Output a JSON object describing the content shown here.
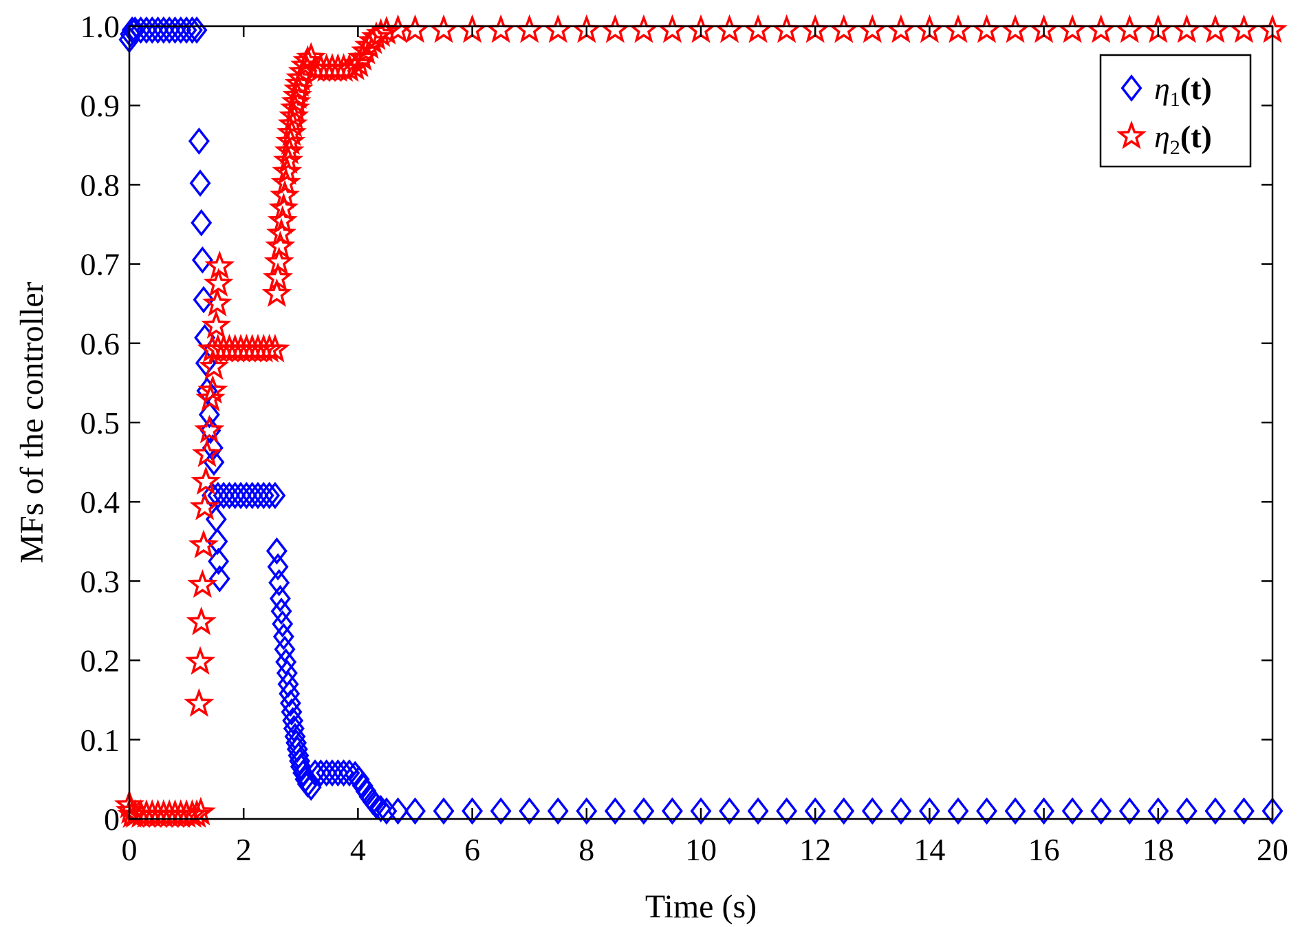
{
  "chart_data": {
    "type": "scatter",
    "title": "",
    "xlabel": "Time (s)",
    "ylabel": "MFs of the controller",
    "xlim": [
      0,
      20
    ],
    "ylim": [
      0,
      1
    ],
    "xticks": [
      0,
      2,
      4,
      6,
      8,
      10,
      12,
      14,
      16,
      18,
      20
    ],
    "xtick_labels": [
      "0",
      "2",
      "4",
      "6",
      "8",
      "10",
      "12",
      "14",
      "16",
      "18",
      "20"
    ],
    "yticks": [
      0,
      0.1,
      0.2,
      0.3,
      0.4,
      0.5,
      0.6,
      0.7,
      0.8,
      0.9,
      1.0
    ],
    "ytick_labels": [
      "0",
      "0.1",
      "0.2",
      "0.3",
      "0.4",
      "0.5",
      "0.6",
      "0.7",
      "0.8",
      "0.9",
      "1.0"
    ],
    "grid": false,
    "legend_position": "top-right",
    "series": [
      {
        "name": "η1(t)",
        "legend": {
          "symbol": "η",
          "sub": "1",
          "arg": "(t)"
        },
        "marker": "diamond",
        "color": "#0000ff",
        "points": [
          [
            0,
            0.983
          ],
          [
            0.02,
            0.99
          ],
          [
            0.05,
            0.995
          ],
          [
            0.1,
            0.995
          ],
          [
            0.2,
            0.995
          ],
          [
            0.3,
            0.995
          ],
          [
            0.4,
            0.995
          ],
          [
            0.5,
            0.995
          ],
          [
            0.6,
            0.995
          ],
          [
            0.7,
            0.995
          ],
          [
            0.8,
            0.995
          ],
          [
            0.9,
            0.995
          ],
          [
            1.0,
            0.995
          ],
          [
            1.1,
            0.995
          ],
          [
            1.18,
            0.995
          ],
          [
            1.22,
            0.855
          ],
          [
            1.24,
            0.802
          ],
          [
            1.26,
            0.752
          ],
          [
            1.28,
            0.705
          ],
          [
            1.3,
            0.655
          ],
          [
            1.32,
            0.607
          ],
          [
            1.34,
            0.575
          ],
          [
            1.36,
            0.54
          ],
          [
            1.4,
            0.51
          ],
          [
            1.42,
            0.49
          ],
          [
            1.46,
            0.468
          ],
          [
            1.48,
            0.45
          ],
          [
            1.52,
            0.378
          ],
          [
            1.54,
            0.35
          ],
          [
            1.56,
            0.325
          ],
          [
            1.58,
            0.303
          ],
          [
            1.45,
            0.408
          ],
          [
            1.55,
            0.408
          ],
          [
            1.65,
            0.408
          ],
          [
            1.75,
            0.408
          ],
          [
            1.85,
            0.408
          ],
          [
            1.95,
            0.408
          ],
          [
            2.05,
            0.408
          ],
          [
            2.15,
            0.408
          ],
          [
            2.25,
            0.408
          ],
          [
            2.35,
            0.408
          ],
          [
            2.45,
            0.408
          ],
          [
            2.55,
            0.408
          ],
          [
            2.58,
            0.338
          ],
          [
            2.6,
            0.318
          ],
          [
            2.62,
            0.298
          ],
          [
            2.64,
            0.278
          ],
          [
            2.66,
            0.262
          ],
          [
            2.68,
            0.246
          ],
          [
            2.7,
            0.23
          ],
          [
            2.72,
            0.214
          ],
          [
            2.74,
            0.198
          ],
          [
            2.76,
            0.184
          ],
          [
            2.78,
            0.17
          ],
          [
            2.8,
            0.158
          ],
          [
            2.82,
            0.146
          ],
          [
            2.84,
            0.135
          ],
          [
            2.86,
            0.124
          ],
          [
            2.88,
            0.114
          ],
          [
            2.9,
            0.104
          ],
          [
            2.92,
            0.096
          ],
          [
            2.94,
            0.088
          ],
          [
            2.96,
            0.08
          ],
          [
            2.98,
            0.073
          ],
          [
            3.0,
            0.066
          ],
          [
            3.04,
            0.058
          ],
          [
            3.08,
            0.05
          ],
          [
            3.12,
            0.044
          ],
          [
            3.18,
            0.04
          ],
          [
            3.25,
            0.058
          ],
          [
            3.35,
            0.058
          ],
          [
            3.45,
            0.058
          ],
          [
            3.55,
            0.058
          ],
          [
            3.65,
            0.058
          ],
          [
            3.75,
            0.058
          ],
          [
            3.85,
            0.058
          ],
          [
            3.95,
            0.056
          ],
          [
            4.02,
            0.05
          ],
          [
            4.08,
            0.042
          ],
          [
            4.14,
            0.035
          ],
          [
            4.2,
            0.028
          ],
          [
            4.26,
            0.022
          ],
          [
            4.32,
            0.017
          ],
          [
            4.4,
            0.013
          ],
          [
            4.5,
            0.01
          ],
          [
            4.7,
            0.01
          ],
          [
            5.0,
            0.01
          ],
          [
            5.5,
            0.01
          ],
          [
            6.0,
            0.01
          ],
          [
            6.5,
            0.01
          ],
          [
            7.0,
            0.01
          ],
          [
            7.5,
            0.01
          ],
          [
            8.0,
            0.01
          ],
          [
            8.5,
            0.01
          ],
          [
            9.0,
            0.01
          ],
          [
            9.5,
            0.01
          ],
          [
            10.0,
            0.01
          ],
          [
            10.5,
            0.01
          ],
          [
            11.0,
            0.01
          ],
          [
            11.5,
            0.01
          ],
          [
            12.0,
            0.01
          ],
          [
            12.5,
            0.01
          ],
          [
            13.0,
            0.01
          ],
          [
            13.5,
            0.01
          ],
          [
            14.0,
            0.01
          ],
          [
            14.5,
            0.01
          ],
          [
            15.0,
            0.01
          ],
          [
            15.5,
            0.01
          ],
          [
            16.0,
            0.01
          ],
          [
            16.5,
            0.01
          ],
          [
            17.0,
            0.01
          ],
          [
            17.5,
            0.01
          ],
          [
            18.0,
            0.01
          ],
          [
            18.5,
            0.01
          ],
          [
            19.0,
            0.01
          ],
          [
            19.5,
            0.01
          ],
          [
            20.0,
            0.01
          ]
        ]
      },
      {
        "name": "η2(t)",
        "legend": {
          "symbol": "η",
          "sub": "2",
          "arg": "(t)"
        },
        "marker": "star",
        "color": "#ff0000",
        "points": [
          [
            0,
            0.017
          ],
          [
            0.02,
            0.01
          ],
          [
            0.05,
            0.005
          ],
          [
            0.1,
            0.005
          ],
          [
            0.2,
            0.005
          ],
          [
            0.3,
            0.005
          ],
          [
            0.4,
            0.005
          ],
          [
            0.5,
            0.005
          ],
          [
            0.6,
            0.005
          ],
          [
            0.7,
            0.005
          ],
          [
            0.8,
            0.005
          ],
          [
            0.9,
            0.005
          ],
          [
            1.0,
            0.005
          ],
          [
            1.1,
            0.005
          ],
          [
            1.18,
            0.005
          ],
          [
            1.25,
            0.008
          ],
          [
            1.22,
            0.145
          ],
          [
            1.24,
            0.198
          ],
          [
            1.26,
            0.248
          ],
          [
            1.28,
            0.295
          ],
          [
            1.3,
            0.345
          ],
          [
            1.32,
            0.393
          ],
          [
            1.34,
            0.425
          ],
          [
            1.36,
            0.46
          ],
          [
            1.4,
            0.49
          ],
          [
            1.42,
            0.53
          ],
          [
            1.46,
            0.54
          ],
          [
            1.48,
            0.57
          ],
          [
            1.52,
            0.622
          ],
          [
            1.54,
            0.65
          ],
          [
            1.56,
            0.675
          ],
          [
            1.58,
            0.697
          ],
          [
            1.45,
            0.592
          ],
          [
            1.55,
            0.592
          ],
          [
            1.65,
            0.592
          ],
          [
            1.75,
            0.592
          ],
          [
            1.85,
            0.592
          ],
          [
            1.95,
            0.592
          ],
          [
            2.05,
            0.592
          ],
          [
            2.15,
            0.592
          ],
          [
            2.25,
            0.592
          ],
          [
            2.35,
            0.592
          ],
          [
            2.45,
            0.592
          ],
          [
            2.55,
            0.592
          ],
          [
            2.58,
            0.662
          ],
          [
            2.6,
            0.682
          ],
          [
            2.62,
            0.702
          ],
          [
            2.64,
            0.722
          ],
          [
            2.66,
            0.738
          ],
          [
            2.68,
            0.754
          ],
          [
            2.7,
            0.77
          ],
          [
            2.72,
            0.786
          ],
          [
            2.74,
            0.802
          ],
          [
            2.76,
            0.816
          ],
          [
            2.78,
            0.83
          ],
          [
            2.8,
            0.842
          ],
          [
            2.82,
            0.854
          ],
          [
            2.84,
            0.865
          ],
          [
            2.86,
            0.876
          ],
          [
            2.88,
            0.886
          ],
          [
            2.9,
            0.896
          ],
          [
            2.92,
            0.904
          ],
          [
            2.94,
            0.912
          ],
          [
            2.96,
            0.92
          ],
          [
            2.98,
            0.927
          ],
          [
            3.0,
            0.934
          ],
          [
            3.04,
            0.942
          ],
          [
            3.08,
            0.95
          ],
          [
            3.12,
            0.956
          ],
          [
            3.18,
            0.96
          ],
          [
            3.25,
            0.946
          ],
          [
            3.35,
            0.946
          ],
          [
            3.45,
            0.946
          ],
          [
            3.55,
            0.946
          ],
          [
            3.65,
            0.946
          ],
          [
            3.75,
            0.946
          ],
          [
            3.85,
            0.946
          ],
          [
            3.95,
            0.948
          ],
          [
            4.02,
            0.952
          ],
          [
            4.08,
            0.96
          ],
          [
            4.14,
            0.968
          ],
          [
            4.2,
            0.975
          ],
          [
            4.26,
            0.981
          ],
          [
            4.32,
            0.986
          ],
          [
            4.4,
            0.99
          ],
          [
            4.5,
            0.993
          ],
          [
            4.7,
            0.995
          ],
          [
            5.0,
            0.995
          ],
          [
            5.5,
            0.995
          ],
          [
            6.0,
            0.995
          ],
          [
            6.5,
            0.995
          ],
          [
            7.0,
            0.995
          ],
          [
            7.5,
            0.995
          ],
          [
            8.0,
            0.995
          ],
          [
            8.5,
            0.995
          ],
          [
            9.0,
            0.995
          ],
          [
            9.5,
            0.995
          ],
          [
            10.0,
            0.995
          ],
          [
            10.5,
            0.995
          ],
          [
            11.0,
            0.995
          ],
          [
            11.5,
            0.995
          ],
          [
            12.0,
            0.995
          ],
          [
            12.5,
            0.995
          ],
          [
            13.0,
            0.995
          ],
          [
            13.5,
            0.995
          ],
          [
            14.0,
            0.995
          ],
          [
            14.5,
            0.995
          ],
          [
            15.0,
            0.995
          ],
          [
            15.5,
            0.995
          ],
          [
            16.0,
            0.995
          ],
          [
            16.5,
            0.995
          ],
          [
            17.0,
            0.995
          ],
          [
            17.5,
            0.995
          ],
          [
            18.0,
            0.995
          ],
          [
            18.5,
            0.995
          ],
          [
            19.0,
            0.995
          ],
          [
            19.5,
            0.995
          ],
          [
            20.0,
            0.995
          ]
        ]
      }
    ]
  }
}
